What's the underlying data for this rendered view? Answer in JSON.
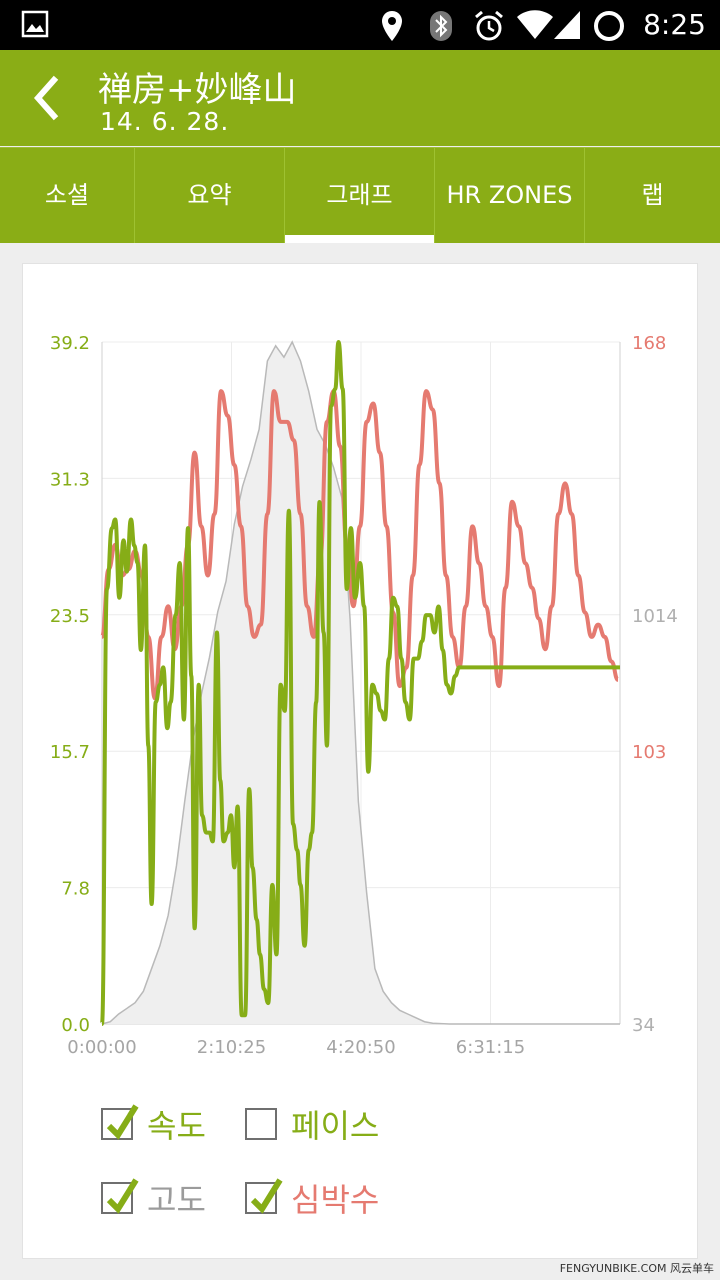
{
  "status_bar": {
    "time": "8:25",
    "icons": [
      "image-icon",
      "location-icon",
      "bluetooth-icon",
      "alarm-icon",
      "wifi-icon",
      "signal-icon",
      "battery-icon"
    ]
  },
  "header": {
    "title": "禅房+妙峰山",
    "subtitle": "14. 6. 28.",
    "back_icon": "chevron-left-icon"
  },
  "tabs": [
    {
      "label": "소셜"
    },
    {
      "label": "요약"
    },
    {
      "label": "그래프",
      "active": true
    },
    {
      "label": "HR ZONES"
    },
    {
      "label": "랩"
    }
  ],
  "colors": {
    "accent": "#8aad16",
    "speed_line": "#86ad17",
    "heart_rate_line": "#e57a70",
    "altitude_fill": "#efefef",
    "altitude_line": "#b9b9b9"
  },
  "chart_data": {
    "type": "line",
    "x_ticks": [
      "0:00:00",
      "2:10:25",
      "4:20:50",
      "6:31:15"
    ],
    "x_range_seconds": [
      0,
      31320
    ],
    "y_left_ticks": [
      "39.2",
      "31.3",
      "23.5",
      "15.7",
      "7.8",
      "0.0"
    ],
    "y_left_range": [
      0,
      39.2
    ],
    "y_right_ticks_hr": [
      "168",
      "103"
    ],
    "y_right_ticks_alt": [
      "1014",
      "34"
    ],
    "y_right_range_hr": [
      57,
      168
    ],
    "y_right_range_alt": [
      34,
      1830
    ],
    "grid": true,
    "series": [
      {
        "name": "속도",
        "axis": "left",
        "x": [
          0,
          300,
          600,
          800,
          1050,
          1300,
          1500,
          1750,
          1950,
          2150,
          2350,
          2600,
          2800,
          3000,
          3250,
          3500,
          3700,
          3950,
          4150,
          4450,
          4700,
          4950,
          5200,
          5400,
          5600,
          5850,
          6050,
          6300,
          6500,
          6700,
          6950,
          7150,
          7350,
          7600,
          7800,
          8000,
          8200,
          8450,
          8650,
          8900,
          9100,
          9350,
          9550,
          9800,
          10050,
          10300,
          10550,
          10800,
          11050,
          11300,
          11550,
          11800,
          12000,
          12250,
          12500,
          12700,
          12950,
          13150,
          13400,
          13600,
          13850,
          14100,
          14300,
          14550,
          14800,
          15050,
          15300,
          15600,
          15850,
          16100,
          16350,
          16600,
          16850,
          17100,
          17350,
          17600,
          17850,
          18100,
          18350,
          18600,
          18850,
          19100,
          19350,
          19600,
          19850,
          20100,
          20350,
          20600,
          20850,
          21100,
          21350,
          21600,
          21850,
          22100,
          22350,
          22600,
          22850,
          23100,
          23350,
          23600,
          23850,
          24100,
          24350,
          24600,
          24850,
          25100,
          25350,
          25600,
          25850,
          26100,
          26350,
          26600,
          26850,
          27100,
          27350,
          27600,
          27850,
          28100,
          28350,
          28600,
          28850,
          29100,
          29350,
          29600,
          29850,
          30100,
          30350,
          30600,
          30850,
          31100,
          31320
        ],
        "values": [
          0.0,
          25.0,
          28.5,
          29.0,
          24.5,
          27.8,
          26.0,
          29.0,
          27.5,
          26.5,
          21.5,
          27.5,
          16.0,
          6.9,
          18.5,
          19.5,
          20.5,
          17.0,
          18.5,
          23.5,
          26.5,
          17.5,
          28.5,
          20.0,
          5.5,
          19.5,
          12.0,
          11.0,
          11.0,
          10.5,
          22.5,
          14.0,
          10.5,
          11.0,
          12.0,
          9.0,
          12.5,
          0.5,
          0.5,
          13.5,
          9.0,
          6.0,
          4.0,
          2.0,
          1.2,
          8.0,
          4.0,
          19.5,
          18.0,
          29.5,
          11.5,
          10.0,
          8.0,
          4.5,
          10.0,
          11.0,
          18.5,
          30.0,
          22.5,
          16.0,
          35.5,
          36.5,
          39.2,
          36.5,
          25.0,
          28.5,
          24.5,
          26.5,
          24.0,
          14.5,
          19.5,
          19.0,
          18.0,
          17.5,
          21.0,
          24.5,
          24.0,
          21.0,
          18.5,
          17.5,
          21.0,
          21.0,
          22.0,
          23.5,
          23.5,
          22.5,
          24.0,
          21.5,
          19.5,
          19.0,
          20.0,
          20.5,
          20.5,
          20.5,
          20.5,
          20.5,
          20.5,
          20.5,
          20.5,
          20.5,
          20.5,
          20.5,
          20.5,
          20.5,
          20.5,
          20.5,
          20.5,
          20.5,
          20.5,
          20.5,
          20.5,
          20.5,
          20.5,
          20.5,
          20.5,
          20.5,
          20.5,
          20.5,
          20.5,
          20.5,
          20.5,
          20.5,
          20.5,
          20.5,
          20.5,
          20.5,
          20.5,
          20.5,
          20.5,
          20.5,
          20.5
        ]
      },
      {
        "name": "심박수",
        "axis": "right_hr",
        "x": [
          0,
          400,
          800,
          1200,
          1600,
          2000,
          2400,
          2800,
          3200,
          3600,
          4000,
          4400,
          4800,
          5200,
          5600,
          6000,
          6400,
          6800,
          7200,
          7600,
          8000,
          8400,
          8800,
          9200,
          9600,
          10000,
          10400,
          10800,
          11200,
          11600,
          12000,
          12400,
          12800,
          13200,
          13600,
          14000,
          14400,
          14800,
          15200,
          15600,
          16000,
          16400,
          16800,
          17200,
          17600,
          18000,
          18400,
          18800,
          19200,
          19600,
          20000,
          20400,
          20800,
          21200,
          21600,
          22000,
          22400,
          22800,
          23200,
          23600,
          24000,
          24400,
          24800,
          25200,
          25600,
          26000,
          26400,
          26800,
          27200,
          27600,
          28000,
          28400,
          28800,
          29200,
          29600,
          30000,
          30400,
          30800,
          31200
        ],
        "values": [
          120,
          131,
          135,
          130,
          131,
          134,
          130,
          120,
          110,
          120,
          125,
          118,
          125,
          135,
          150,
          138,
          130,
          140,
          160,
          156,
          148,
          138,
          125,
          120,
          122,
          140,
          160,
          155,
          155,
          152,
          140,
          125,
          120,
          133,
          155,
          160,
          151,
          135,
          125,
          138,
          155,
          158,
          150,
          138,
          124,
          112,
          115,
          130,
          148,
          160,
          157,
          145,
          130,
          120,
          115,
          125,
          138,
          132,
          125,
          120,
          112,
          128,
          142,
          138,
          132,
          128,
          123,
          118,
          125,
          140,
          145,
          140,
          130,
          124,
          120,
          122,
          120,
          116,
          113
        ]
      },
      {
        "name": "고도",
        "axis": "right_alt",
        "x": [
          0,
          500,
          1000,
          1500,
          2000,
          2500,
          3000,
          3500,
          4000,
          4500,
          5000,
          5500,
          6000,
          6500,
          7000,
          7500,
          8000,
          8500,
          9000,
          9500,
          10000,
          10500,
          11000,
          11500,
          12000,
          12500,
          13000,
          13500,
          14000,
          14500,
          15000,
          15500,
          16000,
          16500,
          17000,
          17500,
          18000,
          18500,
          19000,
          19500,
          20000,
          20500,
          21000,
          21500,
          22000,
          22500,
          23000,
          23500,
          24000,
          24500,
          25000,
          25500,
          26000,
          26500,
          27000,
          27500,
          28000,
          28500,
          29000,
          29500,
          30000,
          30500,
          31000,
          31320
        ],
        "values": [
          34,
          40,
          60,
          75,
          90,
          120,
          180,
          240,
          320,
          450,
          620,
          780,
          900,
          1000,
          1120,
          1200,
          1350,
          1450,
          1520,
          1600,
          1780,
          1820,
          1790,
          1830,
          1780,
          1700,
          1600,
          1560,
          1500,
          1420,
          1100,
          620,
          380,
          180,
          120,
          90,
          70,
          60,
          50,
          40,
          36,
          35,
          34,
          34,
          34,
          34,
          34,
          34,
          34,
          34,
          34,
          34,
          34,
          34,
          34,
          34,
          34,
          34,
          34,
          34,
          34,
          34,
          34,
          34
        ]
      }
    ]
  },
  "legend": [
    {
      "label": "속도",
      "checked": true,
      "color": "#86ad17"
    },
    {
      "label": "페이스",
      "checked": false,
      "color": "#86ad17"
    },
    {
      "label": "고도",
      "checked": true,
      "color": "#9b9b9b"
    },
    {
      "label": "심박수",
      "checked": true,
      "color": "#e57a70"
    }
  ],
  "watermark": "FENGYUNBIKE.COM 风云单车"
}
